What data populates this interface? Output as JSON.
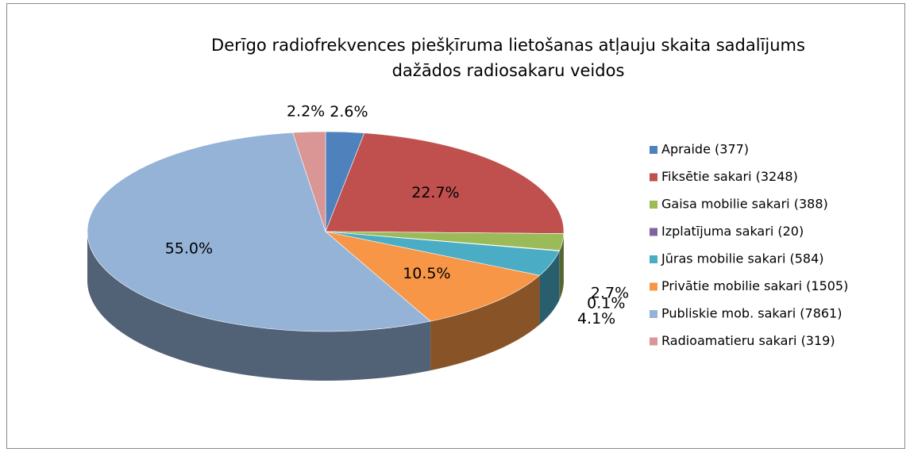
{
  "chart_data": {
    "type": "pie3d",
    "title": [
      "Derīgo radiofrekvences piešķīruma lietošanas atļauju skaita sadalījums",
      "dažādos radiosakaru veidos"
    ],
    "categories": [
      "Apraide (377)",
      "Fiksētie sakari (3248)",
      "Gaisa mobilie sakari (388)",
      "Izplatījuma sakari (20)",
      "Jūras mobilie sakari (584)",
      "Privātie mobilie sakari (1505)",
      "Publiskie mob. sakari (7861)",
      "Radioamatieru sakari (319)"
    ],
    "values": [
      2.6,
      22.7,
      2.7,
      0.1,
      4.1,
      10.5,
      55.0,
      2.2
    ],
    "value_labels": [
      "2.6%",
      "22.7%",
      "2.7%",
      "0.1%",
      "4.1%",
      "10.5%",
      "55.0%",
      "2.2%"
    ],
    "colors": [
      "#4f81bd",
      "#c0504d",
      "#9bbb59",
      "#8064a2",
      "#4bacc6",
      "#f79646",
      "#95b3d7",
      "#d99694"
    ],
    "legend": "right"
  }
}
